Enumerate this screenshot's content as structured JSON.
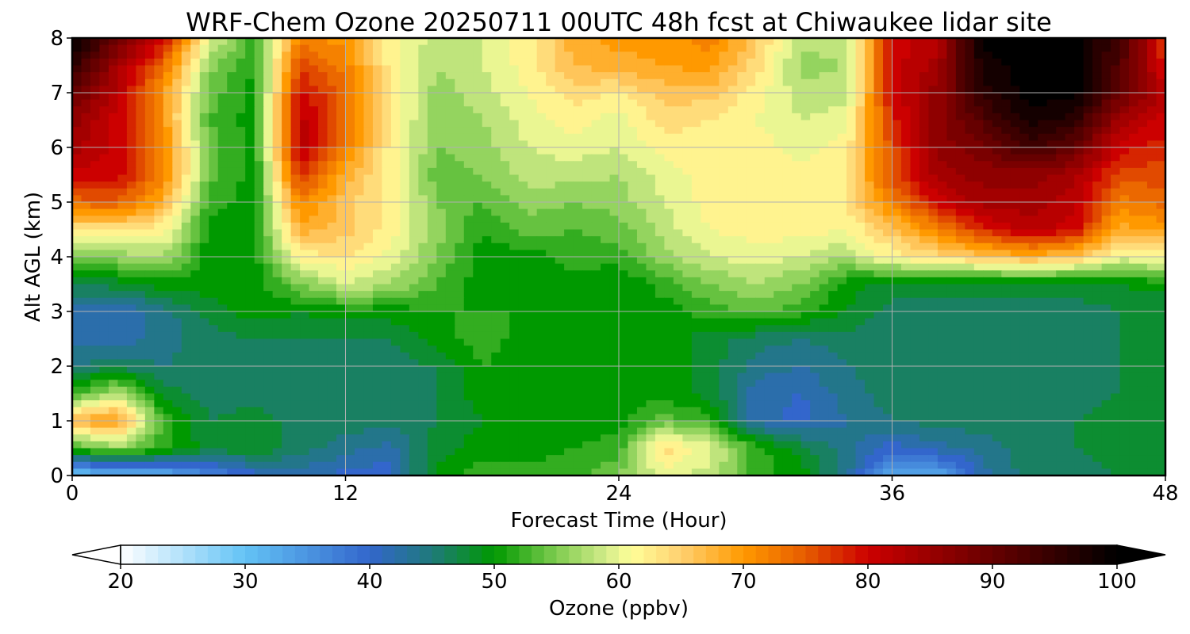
{
  "chart_data": {
    "type": "heatmap",
    "title": "WRF-Chem Ozone  20250711 00UTC 48h fcst at Chiwaukee lidar site",
    "xlabel": "Forecast Time (Hour)",
    "ylabel": "Alt AGL (km)",
    "xlim": [
      0,
      48
    ],
    "ylim": [
      0,
      8
    ],
    "xticks": [
      "0",
      "12",
      "24",
      "36",
      "48"
    ],
    "yticks": [
      "0",
      "1",
      "2",
      "3",
      "4",
      "5",
      "6",
      "7",
      "8"
    ],
    "grid": true,
    "colorbar": {
      "label": "Ozone  (ppbv)",
      "ticks": [
        "20",
        "30",
        "40",
        "50",
        "60",
        "70",
        "80",
        "90",
        "100"
      ],
      "range": [
        20,
        100
      ],
      "extend": "both",
      "stops": [
        {
          "v": 20,
          "c": "#ffffff"
        },
        {
          "v": 30,
          "c": "#63c3f5"
        },
        {
          "v": 40,
          "c": "#3366cc"
        },
        {
          "v": 45,
          "c": "#1f7a7a"
        },
        {
          "v": 50,
          "c": "#009900"
        },
        {
          "v": 55,
          "c": "#7fcc50"
        },
        {
          "v": 59,
          "c": "#d4ec8a"
        },
        {
          "v": 61,
          "c": "#ffff99"
        },
        {
          "v": 65,
          "c": "#ffd070"
        },
        {
          "v": 70,
          "c": "#ff9900"
        },
        {
          "v": 75,
          "c": "#e65c00"
        },
        {
          "v": 80,
          "c": "#cc0000"
        },
        {
          "v": 90,
          "c": "#660000"
        },
        {
          "v": 100,
          "c": "#000000"
        }
      ]
    },
    "z_times": [
      0,
      2,
      4,
      6,
      8,
      10,
      12,
      14,
      16,
      18,
      20,
      22,
      24,
      26,
      28,
      30,
      32,
      34,
      36,
      38,
      40,
      42,
      44,
      46,
      48
    ],
    "z_levels": [
      0,
      0.5,
      1,
      1.5,
      2,
      2.5,
      3,
      3.5,
      4,
      4.5,
      5,
      5.5,
      6,
      6.5,
      7,
      7.5,
      8
    ],
    "z_values": [
      [
        30,
        30,
        32,
        36,
        40,
        42,
        40,
        40,
        50,
        52,
        52,
        52,
        55,
        60,
        58,
        52,
        50,
        44,
        33,
        33,
        42,
        46,
        46,
        47,
        48
      ],
      [
        52,
        56,
        52,
        48,
        49,
        46,
        44,
        42,
        48,
        50,
        50,
        51,
        52,
        64,
        60,
        52,
        48,
        44,
        40,
        42,
        44,
        46,
        47,
        48,
        49
      ],
      [
        68,
        70,
        52,
        47,
        48,
        46,
        46,
        46,
        47,
        49,
        50,
        50,
        50,
        54,
        52,
        42,
        40,
        43,
        45,
        46,
        46,
        46,
        47,
        48,
        49
      ],
      [
        52,
        58,
        48,
        46,
        46,
        46,
        46,
        46,
        47,
        50,
        50,
        50,
        50,
        50,
        48,
        42,
        41,
        44,
        46,
        46,
        46,
        46,
        46,
        47,
        48
      ],
      [
        45,
        46,
        45,
        46,
        46,
        46,
        46,
        46,
        47,
        51,
        50,
        50,
        50,
        50,
        48,
        44,
        43,
        45,
        46,
        46,
        46,
        46,
        46,
        47,
        47
      ],
      [
        42,
        42,
        44,
        46,
        47,
        47,
        47,
        47,
        50,
        52,
        50,
        50,
        50,
        50,
        48,
        46,
        45,
        46,
        46,
        46,
        46,
        46,
        46,
        47,
        47
      ],
      [
        42,
        41,
        44,
        48,
        50,
        49,
        50,
        50,
        51,
        51,
        51,
        50,
        49,
        50,
        52,
        54,
        52,
        49,
        46,
        46,
        46,
        46,
        46,
        47,
        47
      ],
      [
        47,
        48,
        50,
        50,
        50,
        55,
        59,
        57,
        53,
        50,
        50,
        50,
        49,
        52,
        55,
        57,
        55,
        50,
        48,
        48,
        48,
        48,
        48,
        49,
        50
      ],
      [
        54,
        56,
        57,
        50,
        50,
        62,
        63,
        60,
        55,
        50,
        50,
        52,
        52,
        56,
        59,
        60,
        59,
        57,
        62,
        64,
        66,
        68,
        66,
        60,
        62
      ],
      [
        63,
        63,
        62,
        50,
        50,
        68,
        66,
        62,
        56,
        51,
        54,
        53,
        54,
        58,
        61,
        62,
        62,
        61,
        66,
        72,
        78,
        82,
        80,
        68,
        70
      ],
      [
        74,
        75,
        68,
        52,
        50,
        72,
        66,
        62,
        55,
        53,
        56,
        55,
        56,
        59,
        62,
        62,
        63,
        63,
        72,
        80,
        84,
        84,
        82,
        72,
        74
      ],
      [
        80,
        80,
        72,
        54,
        50,
        78,
        68,
        62,
        54,
        55,
        58,
        58,
        57,
        60,
        62,
        62,
        62,
        63,
        76,
        84,
        86,
        86,
        84,
        76,
        76
      ],
      [
        84,
        80,
        72,
        54,
        50,
        82,
        72,
        62,
        55,
        56,
        59,
        60,
        59,
        62,
        62,
        62,
        60,
        62,
        76,
        86,
        88,
        94,
        90,
        80,
        78
      ],
      [
        86,
        80,
        70,
        53,
        50,
        82,
        74,
        63,
        55,
        57,
        60,
        62,
        60,
        64,
        63,
        61,
        59,
        60,
        78,
        86,
        92,
        98,
        96,
        84,
        80
      ],
      [
        90,
        82,
        70,
        54,
        50,
        80,
        74,
        63,
        56,
        58,
        61,
        64,
        63,
        66,
        66,
        62,
        58,
        58,
        80,
        86,
        96,
        100,
        100,
        90,
        82
      ],
      [
        96,
        84,
        74,
        56,
        51,
        76,
        72,
        62,
        57,
        59,
        62,
        67,
        68,
        69,
        70,
        64,
        56,
        57,
        80,
        84,
        98,
        100,
        100,
        92,
        78
      ],
      [
        100,
        90,
        80,
        60,
        52,
        72,
        70,
        62,
        58,
        59,
        62,
        68,
        70,
        70,
        72,
        66,
        58,
        58,
        80,
        82,
        100,
        100,
        100,
        94,
        76
      ]
    ]
  }
}
